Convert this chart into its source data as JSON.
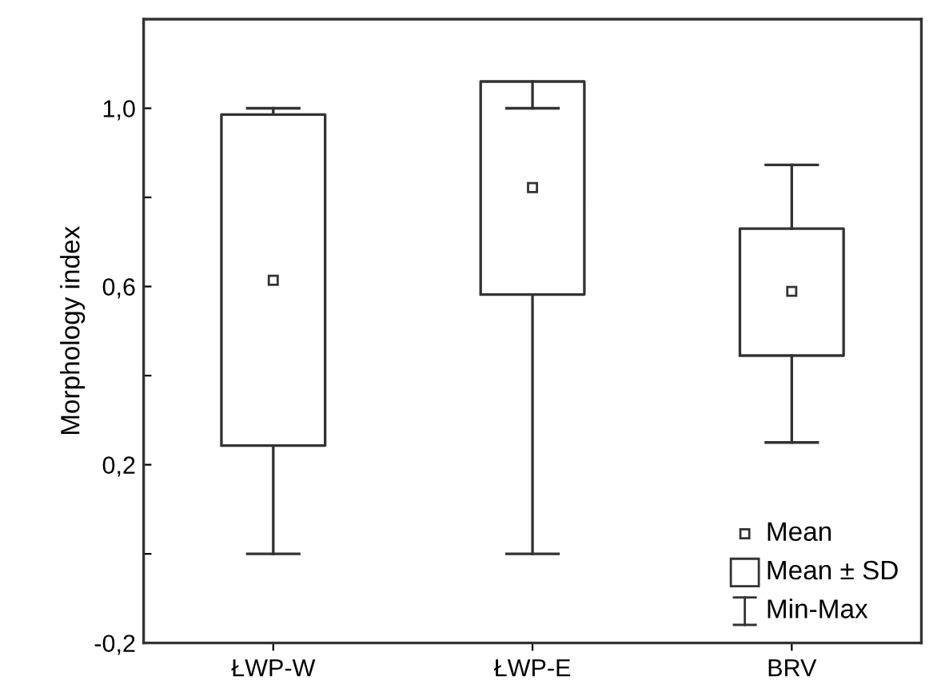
{
  "chart_data": {
    "type": "box",
    "ylabel": "Morphology index",
    "categories": [
      "ŁWP-W",
      "ŁWP-E",
      "BRV"
    ],
    "boxes": [
      {
        "low": 0.0,
        "q1": 0.243,
        "q3": 0.986,
        "high": 1.0,
        "mean": 0.614
      },
      {
        "low": 0.0,
        "q1": 0.582,
        "q3": 1.06,
        "high": 1.0,
        "mean": 0.822
      },
      {
        "low": 0.25,
        "q1": 0.445,
        "q3": 0.73,
        "high": 0.873,
        "mean": 0.589
      }
    ],
    "ylim": [
      -0.2,
      1.2
    ],
    "yticks": [
      {
        "value": -0.2,
        "label": "-0,2"
      },
      {
        "value": 0.0,
        "label": null
      },
      {
        "value": 0.2,
        "label": "0,2"
      },
      {
        "value": 0.4,
        "label": null
      },
      {
        "value": 0.6,
        "label": "0,6"
      },
      {
        "value": 0.8,
        "label": null
      },
      {
        "value": 1.0,
        "label": "1,0"
      }
    ],
    "annotations": [
      "Mean",
      "Mean ± SD",
      "Min-Max"
    ],
    "grid": false,
    "marker": "square",
    "color": "#333333"
  }
}
